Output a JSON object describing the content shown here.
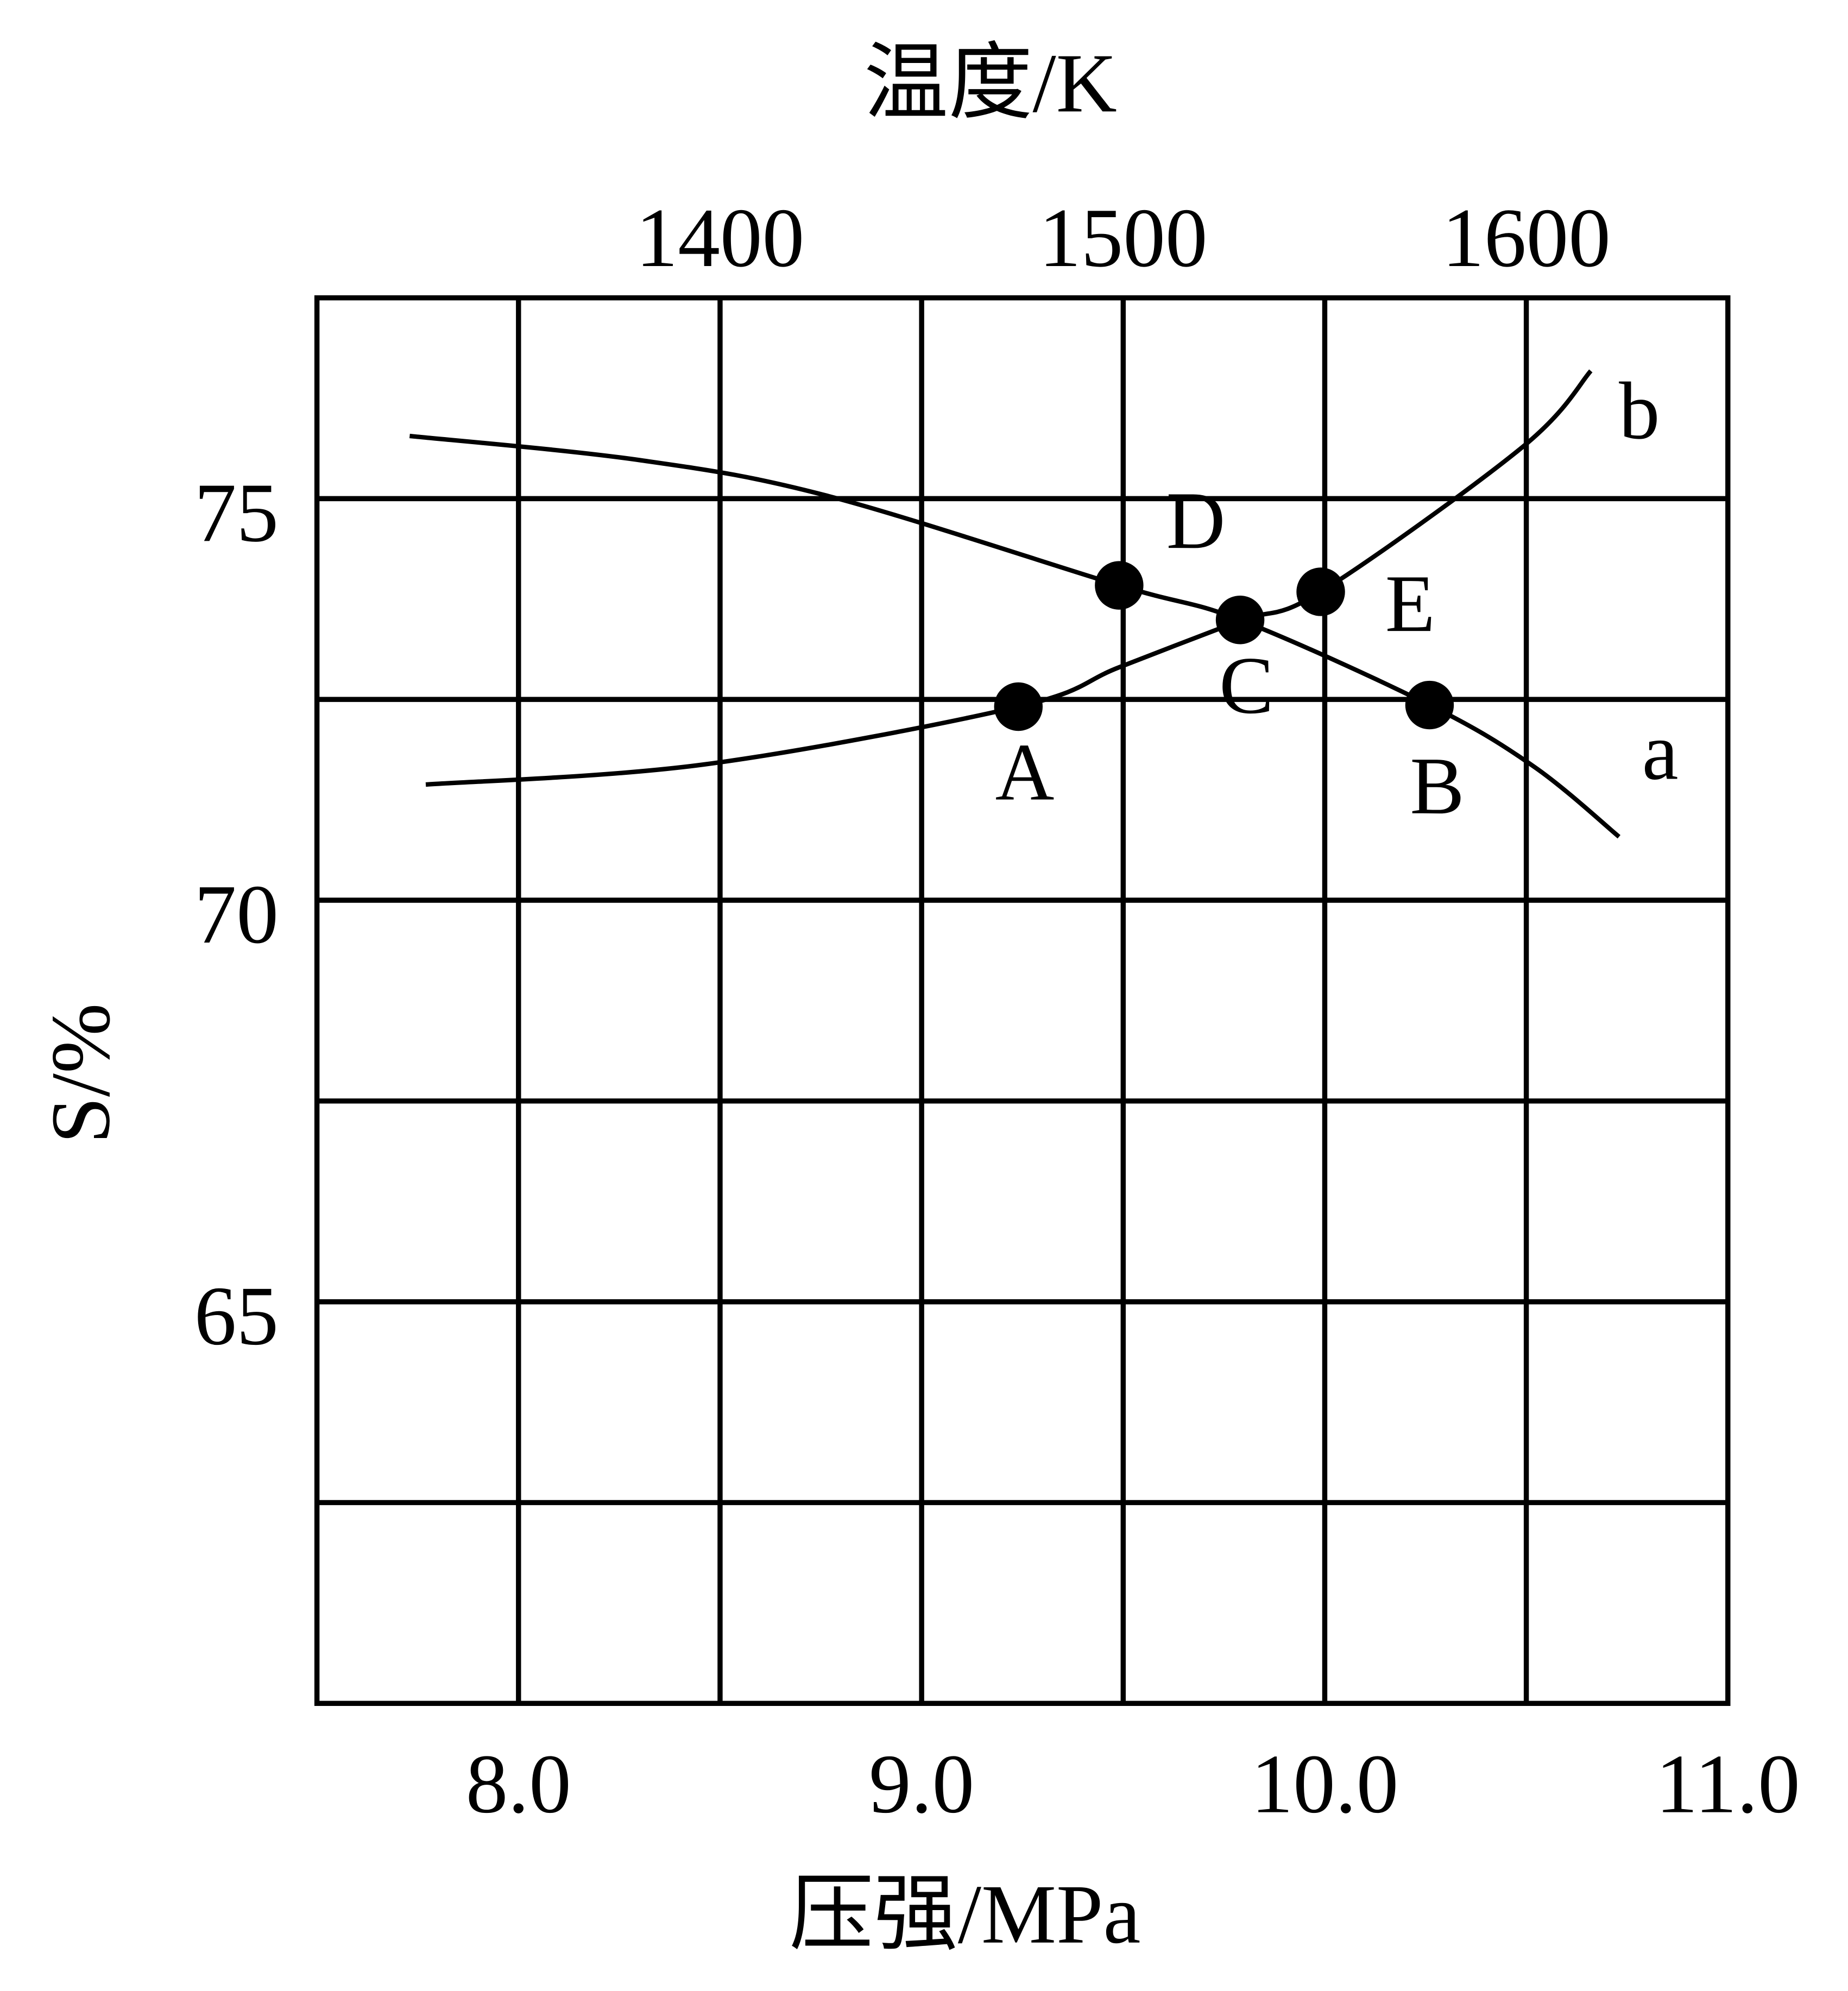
{
  "chart_data": {
    "type": "line",
    "title_top_axis": "温度/K",
    "xlabel": "压强/MPa",
    "ylabel": "S/%",
    "xlim": [
      7.5,
      11.0
    ],
    "xticks": [
      {
        "value": 8,
        "label": "8.0"
      },
      {
        "value": 9,
        "label": "9.0"
      },
      {
        "value": 10,
        "label": "10.0"
      },
      {
        "value": 11,
        "label": "11.0"
      }
    ],
    "x2lim": [
      1300,
      1650
    ],
    "x2ticks": [
      1400,
      1500,
      1600
    ],
    "ylim": [
      60,
      77.5
    ],
    "yticks": [
      65,
      70,
      75
    ],
    "minor_yticks": [
      62.5,
      67.5,
      72.5
    ],
    "grid": true,
    "series": [
      {
        "name": "a",
        "color": "#000000",
        "x": [
          7.73,
          8.3,
          8.77,
          9.49,
          9.79,
          10.26,
          10.52,
          10.73
        ],
        "values": [
          75.78,
          75.48,
          75.03,
          73.92,
          73.49,
          72.43,
          71.66,
          70.79
        ]
      },
      {
        "name": "b",
        "color": "#000000",
        "x": [
          7.77,
          8.46,
          9.24,
          9.49,
          9.79,
          9.99,
          10.49,
          10.66
        ],
        "values": [
          71.44,
          71.69,
          72.41,
          72.9,
          73.48,
          73.84,
          75.64,
          76.59
        ]
      }
    ],
    "points": {
      "labels": [
        "A",
        "B",
        "C",
        "D",
        "E"
      ],
      "x": [
        9.24,
        10.26,
        9.79,
        9.49,
        9.99
      ],
      "values": [
        72.41,
        72.43,
        73.49,
        73.92,
        73.84
      ]
    }
  }
}
